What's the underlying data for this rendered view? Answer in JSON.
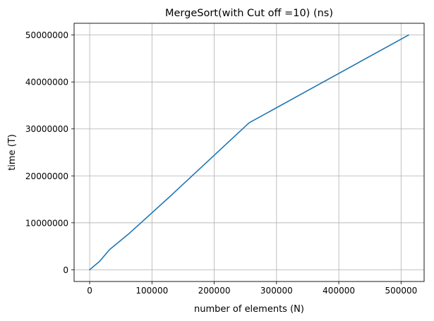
{
  "chart_data": {
    "type": "line",
    "title": "MergeSort(with Cut off =10) (ns)",
    "xlabel": "number of elements (N)",
    "ylabel": "time (T)",
    "xlim": [
      -25000,
      537000
    ],
    "ylim": [
      -2500000,
      52500000
    ],
    "xticks": [
      0,
      100000,
      200000,
      300000,
      400000,
      500000
    ],
    "yticks": [
      0,
      10000000,
      20000000,
      30000000,
      40000000,
      50000000
    ],
    "grid": true,
    "legend": "none",
    "series": [
      {
        "color": "#1f77b4",
        "x": [
          0,
          16000,
          32000,
          64000,
          128000,
          256000,
          512000
        ],
        "y": [
          0,
          1800000,
          4300000,
          7800000,
          15500000,
          31300000,
          50000000
        ]
      }
    ]
  }
}
